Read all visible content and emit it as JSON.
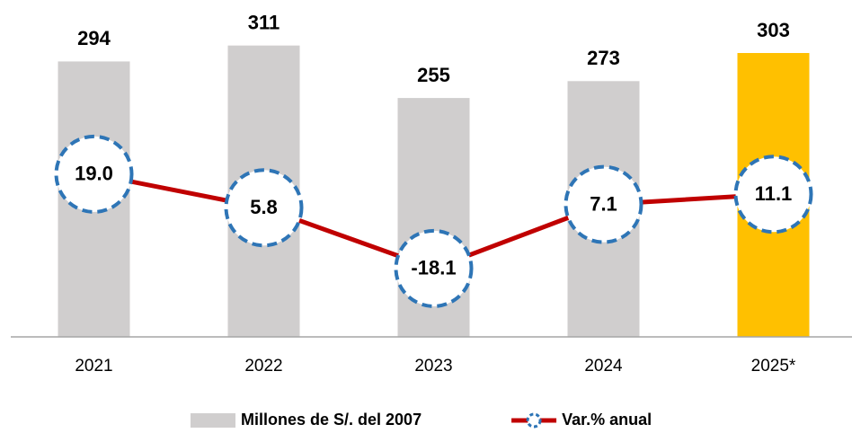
{
  "chart_data": {
    "type": "bar",
    "categories": [
      "2021",
      "2022",
      "2023",
      "2024",
      "2025*"
    ],
    "series": [
      {
        "name": "Millones de S/. del 2007",
        "type": "bar",
        "colors": [
          "#d0cece",
          "#d0cece",
          "#d0cece",
          "#d0cece",
          "#ffc000"
        ],
        "values": [
          294,
          311,
          255,
          273,
          303
        ]
      },
      {
        "name": "Var.% anual",
        "type": "line",
        "axis": "y2",
        "color": "#c00000",
        "marker_color": "#2e75b6",
        "values": [
          19.0,
          5.8,
          -18.1,
          7.1,
          11.1
        ],
        "value_labels": [
          "19.0",
          "5.8",
          "-18.1",
          "7.1",
          "11.1"
        ]
      }
    ],
    "ylim": [
      0,
      350
    ],
    "y2lim": [
      -45,
      84
    ],
    "legend": "bottom"
  }
}
